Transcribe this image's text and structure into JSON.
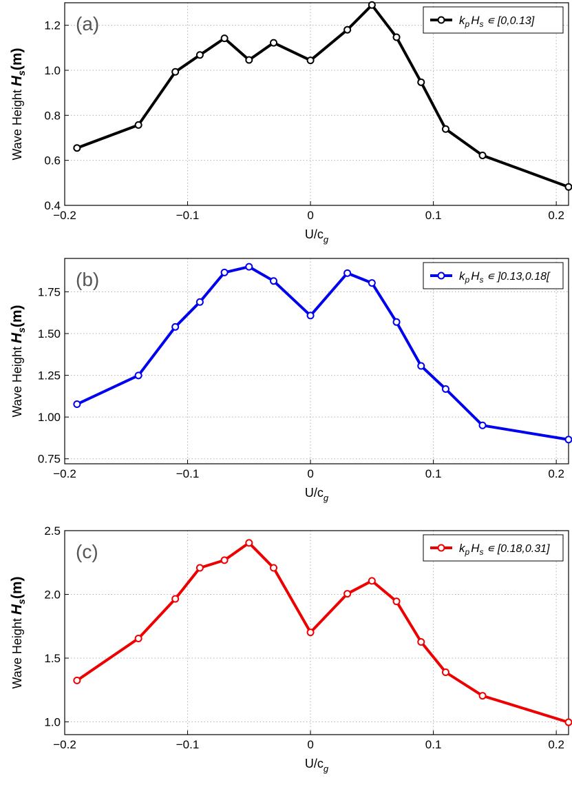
{
  "chart_data": [
    {
      "type": "line",
      "panel_label": "(a)",
      "xlabel_main": "U/c",
      "xlabel_sub": "g",
      "ylabel_text": "Wave Height",
      "ylabel_var": "H",
      "ylabel_sub": "s",
      "ylabel_unit": "(m)",
      "xlim": [
        -0.2,
        0.21
      ],
      "ylim": [
        0.4,
        1.3
      ],
      "xticks": [
        -0.2,
        -0.1,
        0,
        0.1,
        0.2
      ],
      "xtick_labels": [
        "−0.2",
        "−0.1",
        "0",
        "0.1",
        "0.2"
      ],
      "yticks": [
        0.4,
        0.6,
        0.8,
        1.0,
        1.2
      ],
      "ytick_labels": [
        "0.4",
        "0.6",
        "0.8",
        "1.0",
        "1.2"
      ],
      "grid": true,
      "legend_position": "top-right",
      "series": [
        {
          "legend_var": "k",
          "legend_var_sub": "p",
          "legend_var2": "H",
          "legend_var2_sub": "s",
          "legend_range": " ∊ [0,0.13]",
          "color": "#000000",
          "x": [
            -0.19,
            -0.14,
            -0.11,
            -0.09,
            -0.07,
            -0.05,
            -0.03,
            0,
            0.03,
            0.05,
            0.07,
            0.09,
            0.11,
            0.14,
            0.21
          ],
          "y": [
            0.655,
            0.757,
            0.993,
            1.068,
            1.142,
            1.046,
            1.122,
            1.044,
            1.18,
            1.29,
            1.147,
            0.947,
            0.739,
            0.622,
            0.482
          ]
        }
      ]
    },
    {
      "type": "line",
      "panel_label": "(b)",
      "xlabel_main": "U/c",
      "xlabel_sub": "g",
      "ylabel_text": "Wave Height",
      "ylabel_var": "H",
      "ylabel_sub": "s",
      "ylabel_unit": "(m)",
      "xlim": [
        -0.2,
        0.21
      ],
      "ylim": [
        0.72,
        1.95
      ],
      "xticks": [
        -0.2,
        -0.1,
        0,
        0.1,
        0.2
      ],
      "xtick_labels": [
        "−0.2",
        "−0.1",
        "0",
        "0.1",
        "0.2"
      ],
      "yticks": [
        0.75,
        1.0,
        1.25,
        1.5,
        1.75
      ],
      "ytick_labels": [
        "0.75",
        "1.00",
        "1.25",
        "1.50",
        "1.75"
      ],
      "grid": true,
      "legend_position": "top-right",
      "series": [
        {
          "legend_var": "k",
          "legend_var_sub": "p",
          "legend_var2": "H",
          "legend_var2_sub": "s",
          "legend_range": " ∊ ]0.13,0.18[",
          "color": "#0000ee",
          "x": [
            -0.19,
            -0.14,
            -0.11,
            -0.09,
            -0.07,
            -0.05,
            -0.03,
            0,
            0.03,
            0.05,
            0.07,
            0.09,
            0.11,
            0.14,
            0.21
          ],
          "y": [
            1.077,
            1.249,
            1.54,
            1.689,
            1.866,
            1.9,
            1.815,
            1.608,
            1.862,
            1.803,
            1.569,
            1.306,
            1.168,
            0.95,
            0.865
          ]
        }
      ]
    },
    {
      "type": "line",
      "panel_label": "(c)",
      "xlabel_main": "U/c",
      "xlabel_sub": "g",
      "ylabel_text": "Wave Height",
      "ylabel_var": "H",
      "ylabel_sub": "s",
      "ylabel_unit": "(m)",
      "xlim": [
        -0.2,
        0.21
      ],
      "ylim": [
        0.9,
        2.5
      ],
      "xticks": [
        -0.2,
        -0.1,
        0,
        0.1,
        0.2
      ],
      "xtick_labels": [
        "−0.2",
        "−0.1",
        "0",
        "0.1",
        "0.2"
      ],
      "yticks": [
        1.0,
        1.5,
        2.0,
        2.5
      ],
      "ytick_labels": [
        "1.0",
        "1.5",
        "2.0",
        "2.5"
      ],
      "grid": true,
      "legend_position": "top-right",
      "series": [
        {
          "legend_var": "k",
          "legend_var_sub": "p",
          "legend_var2": "H",
          "legend_var2_sub": "s",
          "legend_range": " ∊ [0.18,0.31]",
          "color": "#ee0000",
          "x": [
            -0.19,
            -0.14,
            -0.11,
            -0.09,
            -0.07,
            -0.05,
            -0.03,
            0,
            0.03,
            0.05,
            0.07,
            0.09,
            0.11,
            0.14,
            0.21
          ],
          "y": [
            1.325,
            1.654,
            1.965,
            2.208,
            2.268,
            2.404,
            2.208,
            1.702,
            2.005,
            2.106,
            1.945,
            1.627,
            1.389,
            1.205,
            0.997
          ]
        }
      ]
    }
  ]
}
